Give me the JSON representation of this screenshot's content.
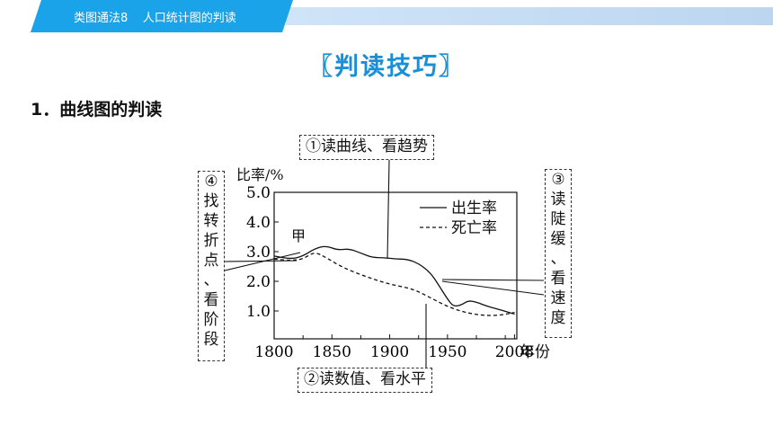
{
  "header": {
    "tab_text": "类图通法8    人口统计图的判读"
  },
  "heading": "〖判读技巧〗",
  "section_title": "1．曲线图的判读",
  "annotations": {
    "top": "①读曲线、看趋势",
    "bottom": "②读数值、看水平",
    "right": [
      "③",
      "读",
      "陡",
      "缓",
      "、",
      "看",
      "速",
      "度"
    ],
    "left": [
      "④",
      "找",
      "转",
      "折",
      "点",
      "、",
      "看",
      "阶",
      "段"
    ]
  },
  "chart_data": {
    "type": "line",
    "ylabel": "比率/%",
    "xlabel": "年份",
    "y_ticks": [
      "5.0",
      "4.0",
      "3.0",
      "2.0",
      "1.0"
    ],
    "x_ticks": [
      "1800",
      "1850",
      "1900",
      "1950",
      "2008"
    ],
    "ylim": [
      0,
      5.0
    ],
    "xlim": [
      1800,
      2010
    ],
    "annotation": "甲",
    "series": [
      {
        "name": "出生率",
        "style": "solid",
        "points": [
          [
            1800,
            2.85
          ],
          [
            1815,
            2.75
          ],
          [
            1825,
            2.85
          ],
          [
            1835,
            3.1
          ],
          [
            1845,
            3.2
          ],
          [
            1855,
            3.05
          ],
          [
            1865,
            3.1
          ],
          [
            1875,
            2.95
          ],
          [
            1885,
            2.8
          ],
          [
            1895,
            2.8
          ],
          [
            1905,
            2.75
          ],
          [
            1915,
            2.75
          ],
          [
            1925,
            2.6
          ],
          [
            1935,
            2.3
          ],
          [
            1942,
            1.9
          ],
          [
            1950,
            1.4
          ],
          [
            1955,
            1.15
          ],
          [
            1962,
            1.2
          ],
          [
            1968,
            1.35
          ],
          [
            1975,
            1.3
          ],
          [
            1985,
            1.15
          ],
          [
            1995,
            1.05
          ],
          [
            2003,
            0.95
          ],
          [
            2008,
            0.9
          ]
        ]
      },
      {
        "name": "死亡率",
        "style": "dashed",
        "points": [
          [
            1800,
            2.75
          ],
          [
            1815,
            2.7
          ],
          [
            1825,
            2.75
          ],
          [
            1835,
            3.0
          ],
          [
            1845,
            2.8
          ],
          [
            1860,
            2.45
          ],
          [
            1880,
            2.15
          ],
          [
            1900,
            1.9
          ],
          [
            1920,
            1.75
          ],
          [
            1935,
            1.45
          ],
          [
            1950,
            1.15
          ],
          [
            1965,
            0.95
          ],
          [
            1980,
            0.85
          ],
          [
            1995,
            0.85
          ],
          [
            2008,
            0.95
          ]
        ]
      }
    ]
  }
}
